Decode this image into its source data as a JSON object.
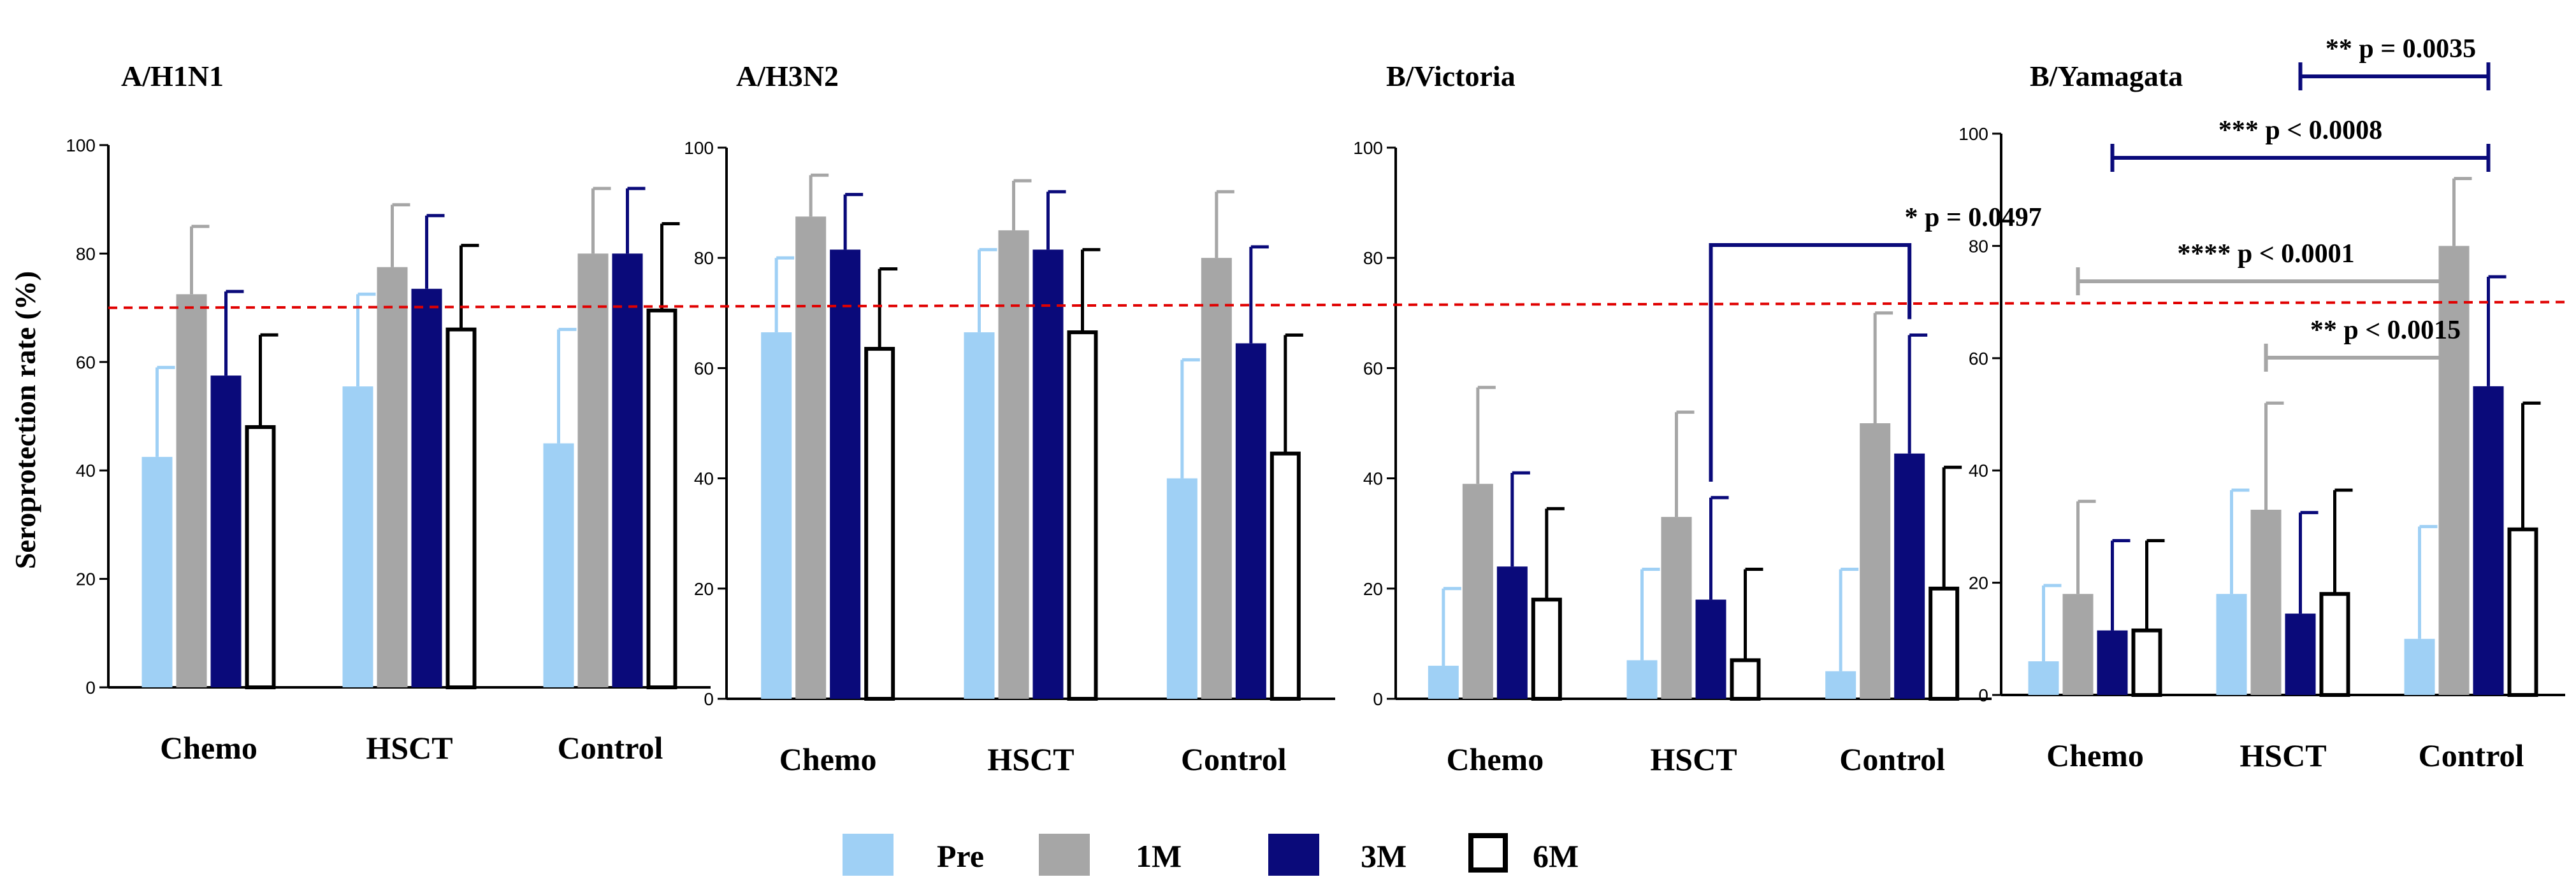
{
  "chart_data": {
    "type": "bar",
    "ylabel": "Seroprotection rate (%)",
    "ylim": [
      0,
      100
    ],
    "yticks": [
      "0",
      "20",
      "40",
      "60",
      "80",
      "100"
    ],
    "threshold": 70,
    "categories": [
      "Chemo",
      "HSCT",
      "Control"
    ],
    "legend": [
      {
        "name": "Pre",
        "color": "#9fd0f5"
      },
      {
        "name": "1M",
        "color": "#a6a6a6"
      },
      {
        "name": "3M",
        "color": "#0a0a7a"
      },
      {
        "name": "6M",
        "color": "#ffffff"
      }
    ],
    "panels": [
      {
        "title": "A/H1N1",
        "series": [
          {
            "name": "Pre",
            "values": [
              42.5,
              55.5,
              45
            ],
            "errors": [
              59,
              72.5,
              66
            ]
          },
          {
            "name": "1M",
            "values": [
              72.5,
              77.5,
              80
            ],
            "errors": [
              85,
              89,
              92
            ]
          },
          {
            "name": "3M",
            "values": [
              57.5,
              73.5,
              80
            ],
            "errors": [
              73,
              87,
              92
            ]
          },
          {
            "name": "6M",
            "values": [
              48,
              66,
              69.5
            ],
            "errors": [
              65,
              81.5,
              85.5
            ]
          }
        ],
        "annotations": []
      },
      {
        "title": "A/H3N2",
        "series": [
          {
            "name": "Pre",
            "values": [
              66.5,
              66.5,
              40
            ],
            "errors": [
              80,
              81.5,
              61.5
            ]
          },
          {
            "name": "1M",
            "values": [
              87.5,
              85,
              80
            ],
            "errors": [
              95,
              94,
              92
            ]
          },
          {
            "name": "3M",
            "values": [
              81.5,
              81.5,
              64.5
            ],
            "errors": [
              91.5,
              92,
              82
            ]
          },
          {
            "name": "6M",
            "values": [
              63.5,
              66.5,
              44.5
            ],
            "errors": [
              78,
              81.5,
              66
            ]
          }
        ],
        "annotations": []
      },
      {
        "title": "B/Victoria",
        "series": [
          {
            "name": "Pre",
            "values": [
              6,
              7,
              5
            ],
            "errors": [
              20,
              23.5,
              23.5
            ]
          },
          {
            "name": "1M",
            "values": [
              39,
              33,
              50
            ],
            "errors": [
              56.5,
              52,
              70
            ]
          },
          {
            "name": "3M",
            "values": [
              24,
              18,
              44.5
            ],
            "errors": [
              41,
              36.5,
              66
            ]
          },
          {
            "name": "6M",
            "values": [
              18,
              7,
              20
            ],
            "errors": [
              34.5,
              23.5,
              42
            ]
          }
        ],
        "annotations": [
          {
            "text": "* p = 0.0497",
            "from": "HSCT-3M",
            "to": "Control-3M",
            "color": "#0a0a7a"
          }
        ]
      },
      {
        "title": "B/Yamagata",
        "series": [
          {
            "name": "Pre",
            "values": [
              6,
              18,
              10
            ],
            "errors": [
              19.5,
              36.5,
              30
            ]
          },
          {
            "name": "1M",
            "values": [
              18,
              33,
              80
            ],
            "errors": [
              34.5,
              52,
              92
            ]
          },
          {
            "name": "3M",
            "values": [
              11.5,
              14.5,
              55
            ],
            "errors": [
              27.5,
              32.5,
              74.5
            ]
          },
          {
            "name": "6M",
            "values": [
              11.5,
              18,
              29.5
            ],
            "errors": [
              27.5,
              36.5,
              52
            ]
          }
        ],
        "annotations": [
          {
            "text": "** p = 0.0035",
            "from": "HSCT-3M",
            "to": "Control-3M",
            "color": "#0a0a7a"
          },
          {
            "text": "*** p < 0.0008",
            "from": "Chemo-3M",
            "to": "Control-3M",
            "color": "#0a0a7a"
          },
          {
            "text": "**** p < 0.0001",
            "from": "Chemo-1M",
            "to": "Control-1M",
            "color": "#a6a6a6"
          },
          {
            "text": "** p < 0.0015",
            "from": "HSCT-1M",
            "to": "Control-1M",
            "color": "#a6a6a6"
          }
        ]
      }
    ]
  }
}
